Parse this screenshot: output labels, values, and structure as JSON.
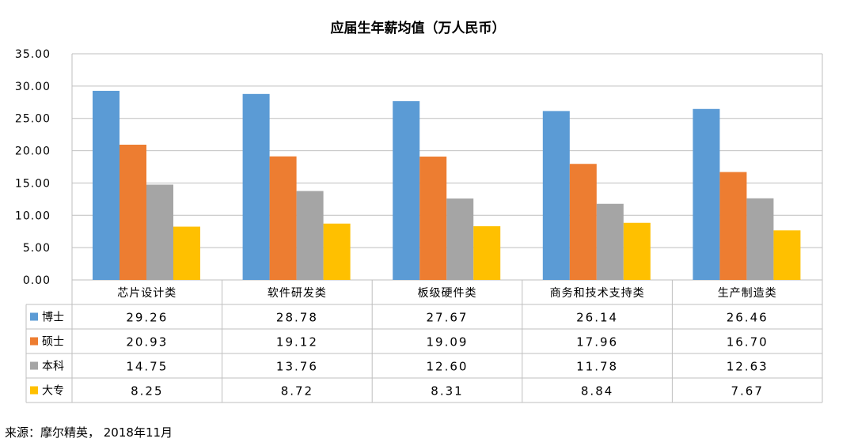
{
  "chart_data": {
    "type": "bar",
    "title": "应届生年薪均值（万人民币）",
    "categories": [
      "芯片设计类",
      "软件研发类",
      "板级硬件类",
      "商务和技术支持类",
      "生产制造类"
    ],
    "series": [
      {
        "name": "博士",
        "color": "#5b9bd5",
        "values": [
          29.26,
          28.78,
          27.67,
          26.14,
          26.46
        ],
        "labels": [
          "29.26",
          "28.78",
          "27.67",
          "26.14",
          "26.46"
        ]
      },
      {
        "name": "硕士",
        "color": "#ed7d31",
        "values": [
          20.93,
          19.12,
          19.09,
          17.96,
          16.7
        ],
        "labels": [
          "20.93",
          "19.12",
          "19.09",
          "17.96",
          "16.70"
        ]
      },
      {
        "name": "本科",
        "color": "#a5a5a5",
        "values": [
          14.75,
          13.76,
          12.6,
          11.78,
          12.63
        ],
        "labels": [
          "14.75",
          "13.76",
          "12.60",
          "11.78",
          "12.63"
        ]
      },
      {
        "name": "大专",
        "color": "#ffc000",
        "values": [
          8.25,
          8.72,
          8.31,
          8.84,
          7.67
        ],
        "labels": [
          "8.25",
          "8.72",
          "8.31",
          "8.84",
          "7.67"
        ]
      }
    ],
    "ylim": [
      0,
      35
    ],
    "yticks": [
      "0.00",
      "5.00",
      "10.00",
      "15.00",
      "20.00",
      "25.00",
      "30.00",
      "35.00"
    ],
    "grid": true,
    "legend": "data-table-below"
  },
  "source_note": "来源：摩尔精英， 2018年11月"
}
